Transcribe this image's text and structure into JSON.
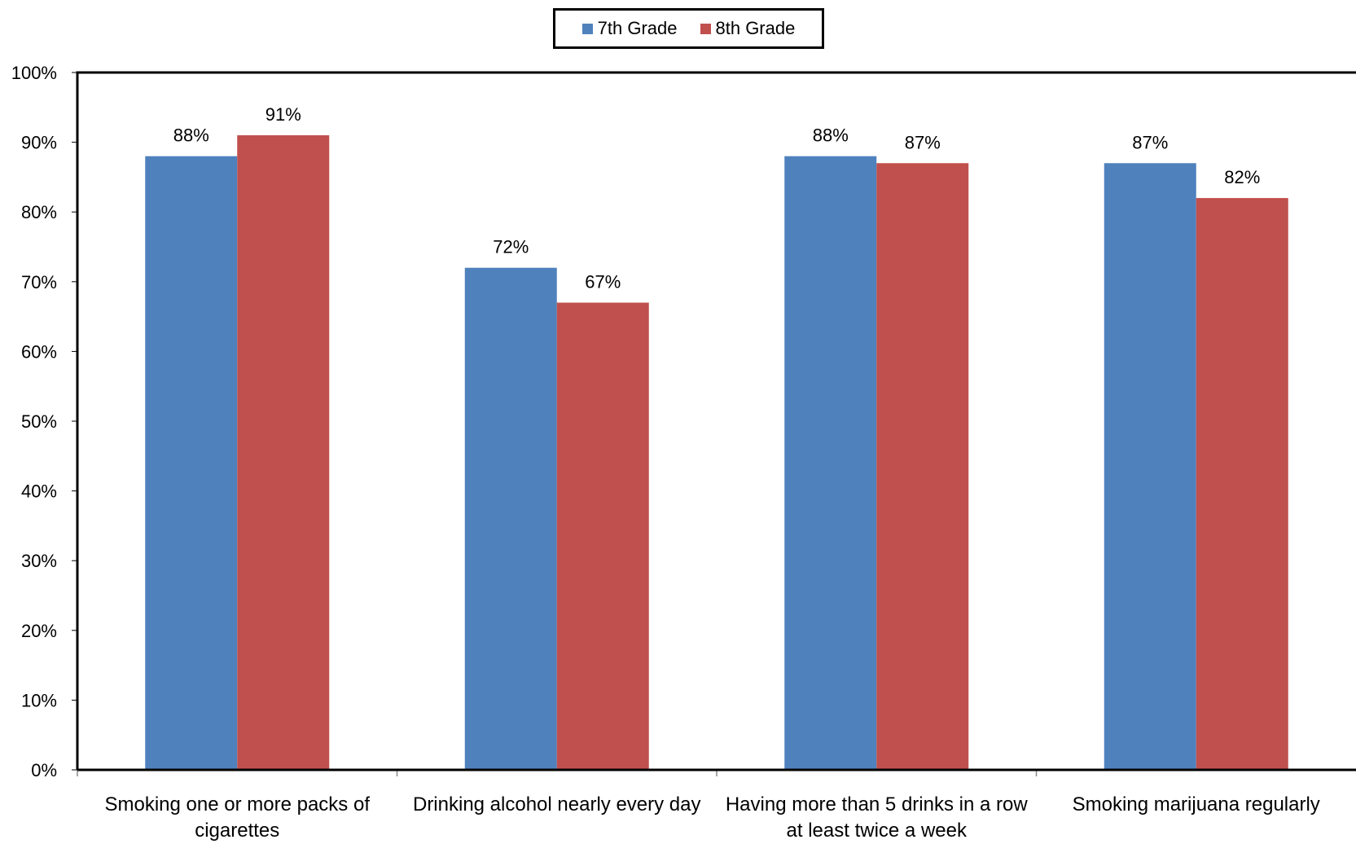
{
  "chart_data": {
    "type": "bar",
    "title": "",
    "xlabel": "",
    "ylabel": "",
    "ylim": [
      0,
      100
    ],
    "yticks": [
      "0%",
      "10%",
      "20%",
      "30%",
      "40%",
      "50%",
      "60%",
      "70%",
      "80%",
      "90%",
      "100%"
    ],
    "categories": [
      [
        "Smoking one or more packs of",
        "cigarettes"
      ],
      [
        "Drinking alcohol nearly every day"
      ],
      [
        "Having more than 5 drinks in a row",
        "at least twice a week"
      ],
      [
        "Smoking marijuana regularly"
      ]
    ],
    "series": [
      {
        "name": "7th Grade",
        "color": "#4F81BD",
        "values": [
          88,
          72,
          88,
          87
        ],
        "labels": [
          "88%",
          "72%",
          "88%",
          "87%"
        ]
      },
      {
        "name": "8th Grade",
        "color": "#C0504D",
        "values": [
          91,
          67,
          87,
          82
        ],
        "labels": [
          "91%",
          "67%",
          "87%",
          "82%"
        ]
      }
    ],
    "grid": false,
    "legend_position": "top-center"
  }
}
